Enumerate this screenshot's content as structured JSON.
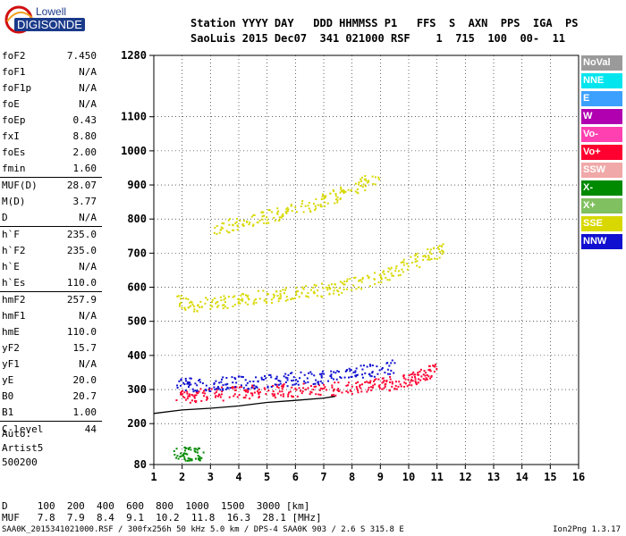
{
  "logo": {
    "line1": "Lowell",
    "line2": "DIGISONDE"
  },
  "header": {
    "labels": "Station YYYY DAY   DDD HHMMSS P1   FFS  S  AXN  PPS  IGA  PS",
    "values": "SaoLuis 2015 Dec07  341 021000 RSF    1  715  100  00-  11"
  },
  "params": [
    {
      "name": "foF2",
      "value": "7.450"
    },
    {
      "name": "foF1",
      "value": "N/A"
    },
    {
      "name": "foF1p",
      "value": "N/A"
    },
    {
      "name": "foE",
      "value": "N/A"
    },
    {
      "name": "foEp",
      "value": "0.43"
    },
    {
      "name": "fxI",
      "value": "8.80"
    },
    {
      "name": "foEs",
      "value": "2.00"
    },
    {
      "name": "fmin",
      "value": "1.60"
    },
    {
      "name": "MUF(D)",
      "value": "28.07"
    },
    {
      "name": "M(D)",
      "value": "3.77"
    },
    {
      "name": "D",
      "value": "N/A"
    },
    {
      "name": "h`F",
      "value": "235.0"
    },
    {
      "name": "h`F2",
      "value": "235.0"
    },
    {
      "name": "h`E",
      "value": "N/A"
    },
    {
      "name": "h`Es",
      "value": "110.0"
    },
    {
      "name": "hmF2",
      "value": "257.9"
    },
    {
      "name": "hmF1",
      "value": "N/A"
    },
    {
      "name": "hmE",
      "value": "110.0"
    },
    {
      "name": "yF2",
      "value": "15.7"
    },
    {
      "name": "yF1",
      "value": "N/A"
    },
    {
      "name": "yE",
      "value": "20.0"
    },
    {
      "name": "B0",
      "value": "20.7"
    },
    {
      "name": "B1",
      "value": "1.00"
    },
    {
      "name": "C-level",
      "value": "44"
    }
  ],
  "auto": {
    "line1": "Auto:",
    "line2": "Artist5",
    "line3": "500200"
  },
  "legend": [
    {
      "label": "NoVal",
      "color": "#9a9a9a"
    },
    {
      "label": "NNE",
      "color": "#00e5ee"
    },
    {
      "label": "E",
      "color": "#3ca0ff"
    },
    {
      "label": "W",
      "color": "#b000b0"
    },
    {
      "label": "Vo-",
      "color": "#ff40b0"
    },
    {
      "label": "Vo+",
      "color": "#ff0030"
    },
    {
      "label": "SSW",
      "color": "#f0a8a8"
    },
    {
      "label": "X-",
      "color": "#008a00"
    },
    {
      "label": "X+",
      "color": "#80c060"
    },
    {
      "label": "SSE",
      "color": "#d8d800"
    },
    {
      "label": "NNW",
      "color": "#1010d0"
    }
  ],
  "dmuf": {
    "d_line": "D     100  200  400  600  800  1000  1500  3000 [km]",
    "muf_line": "MUF   7.8  7.9  8.4  9.1  10.2  11.8  16.3  28.1 [MHz]"
  },
  "footer": "SAA0K_2015341021000.RSF / 300fx256h 50 kHz 5.0 km / DPS-4 SAA0K 903 / 2.6 S 315.8 E",
  "version": "Ion2Png 1.3.17",
  "chart_data": {
    "type": "scatter",
    "xlim": [
      1,
      16
    ],
    "ylim": [
      80,
      1280
    ],
    "x_ticks": [
      1,
      2,
      3,
      4,
      5,
      6,
      7,
      8,
      9,
      10,
      11,
      12,
      13,
      14,
      15,
      16
    ],
    "y_ticks": [
      80,
      200,
      300,
      400,
      500,
      600,
      700,
      800,
      900,
      1000,
      1100,
      1280
    ],
    "grid": true,
    "traces": [
      {
        "name": "F-layer O trace (red)",
        "color": "#ff0030",
        "points": [
          [
            1.8,
            280
          ],
          [
            2.5,
            285
          ],
          [
            3.5,
            290
          ],
          [
            4.5,
            295
          ],
          [
            5.5,
            298
          ],
          [
            6.5,
            302
          ],
          [
            7.5,
            305
          ],
          [
            8.5,
            310
          ],
          [
            9.2,
            318
          ],
          [
            10,
            330
          ],
          [
            10.5,
            345
          ],
          [
            10.9,
            360
          ]
        ]
      },
      {
        "name": "F-layer X trace (blue)",
        "color": "#1010d0",
        "points": [
          [
            1.8,
            320
          ],
          [
            2.5,
            315
          ],
          [
            3.5,
            320
          ],
          [
            4.5,
            325
          ],
          [
            5.5,
            330
          ],
          [
            6.5,
            335
          ],
          [
            7.5,
            345
          ],
          [
            8.5,
            355
          ],
          [
            9.5,
            370
          ]
        ]
      },
      {
        "name": "Second hop (yellow)",
        "color": "#d8d800",
        "points": [
          [
            1.8,
            560
          ],
          [
            2.5,
            550
          ],
          [
            3.5,
            560
          ],
          [
            4.5,
            570
          ],
          [
            5.5,
            580
          ],
          [
            6.5,
            590
          ],
          [
            7.5,
            600
          ],
          [
            8.5,
            620
          ],
          [
            9.5,
            650
          ],
          [
            10.5,
            690
          ],
          [
            11.2,
            710
          ]
        ]
      },
      {
        "name": "Third hop (yellow)",
        "color": "#d8d800",
        "points": [
          [
            3,
            770
          ],
          [
            4,
            790
          ],
          [
            5,
            810
          ],
          [
            6,
            830
          ],
          [
            7,
            860
          ],
          [
            8,
            890
          ],
          [
            9,
            930
          ]
        ]
      },
      {
        "name": "Es trace",
        "color": "#008a00",
        "points": [
          [
            1.7,
            115
          ],
          [
            2.2,
            113
          ],
          [
            2.7,
            112
          ]
        ]
      }
    ],
    "model_profile": {
      "color": "#000000",
      "points": [
        [
          1.0,
          230
        ],
        [
          2.0,
          240
        ],
        [
          3.0,
          245
        ],
        [
          4.0,
          252
        ],
        [
          5.0,
          262
        ],
        [
          6.0,
          268
        ],
        [
          7.0,
          275
        ],
        [
          7.4,
          280
        ]
      ]
    }
  }
}
